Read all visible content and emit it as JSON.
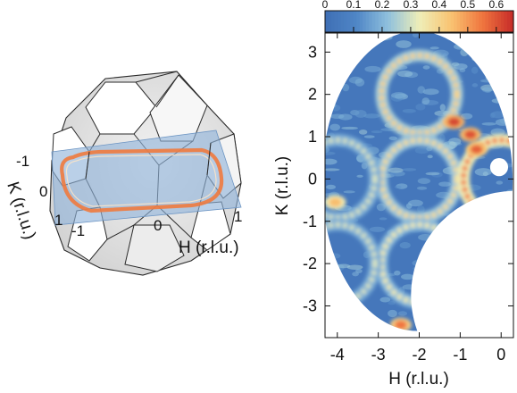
{
  "chart_data": [
    {
      "type": "diagram",
      "panel": "left",
      "axis_labels": {
        "k": "K (r.l.u.)",
        "h": "H (r.l.u.)"
      },
      "tick_labels": {
        "k_minus1": "-1",
        "k_zero": "0",
        "k_one": "1",
        "h_minus1": "-1",
        "h_zero": "0",
        "h_one": "1"
      },
      "colors": {
        "polyhedron_fill": "#e3e3e3",
        "polyhedron_edge": "#2a2a2a",
        "plane": "#8fb3da",
        "fermi_contour": "#f07a3e"
      }
    },
    {
      "type": "heatmap",
      "panel": "right",
      "xlabel": "H (r.l.u.)",
      "ylabel": "K (r.l.u.)",
      "xlim": [
        -4.3,
        0.3
      ],
      "ylim": [
        -3.75,
        3.45
      ],
      "xticks": [
        -4,
        -3,
        -2,
        -1,
        0
      ],
      "yticks": [
        -3,
        -2,
        -1,
        0,
        1,
        2,
        3
      ],
      "colorbar": {
        "ticks": [
          0,
          0.1,
          0.2,
          0.3,
          0.4,
          0.5,
          0.6
        ],
        "range": [
          0,
          0.66
        ]
      },
      "colormap": [
        "#3f6fb5",
        "#4f86c6",
        "#8fc0dd",
        "#eeeeb8",
        "#f9c472",
        "#f0763f",
        "#c62a28"
      ],
      "rings": [
        {
          "center_h": -2.0,
          "center_k": 2.0,
          "radius": 0.92,
          "intensity": 0.4
        },
        {
          "center_h": -2.0,
          "center_k": 0.0,
          "radius": 0.92,
          "intensity": 0.38
        },
        {
          "center_h": 0.0,
          "center_k": 0.0,
          "radius": 0.92,
          "intensity": 0.55
        },
        {
          "center_h": -4.0,
          "center_k": 0.0,
          "radius": 0.92,
          "intensity": 0.3
        },
        {
          "center_h": -2.0,
          "center_k": -2.0,
          "radius": 0.92,
          "intensity": 0.34
        },
        {
          "center_h": -4.0,
          "center_k": -2.0,
          "radius": 0.92,
          "intensity": 0.3
        }
      ],
      "hotspots": [
        {
          "h": -1.15,
          "k": 1.35,
          "value": 0.62
        },
        {
          "h": -0.75,
          "k": 1.05,
          "value": 0.6
        },
        {
          "h": -0.6,
          "k": 0.7,
          "value": 0.58
        },
        {
          "h": -2.45,
          "k": -3.45,
          "value": 0.55
        },
        {
          "h": -4.05,
          "k": -0.55,
          "value": 0.45
        }
      ]
    }
  ]
}
